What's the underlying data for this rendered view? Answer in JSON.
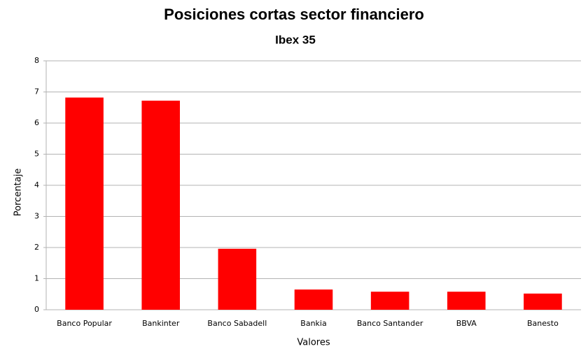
{
  "chart_data": {
    "type": "bar",
    "title": "Posiciones cortas sector financiero",
    "subtitle": "Ibex 35",
    "x_label": "Valores",
    "y_label": "Porcentaje",
    "categories": [
      "Banco Popular",
      "Bankinter",
      "Banco Sabadell",
      "Bankia",
      "Banco Santander",
      "BBVA",
      "Banesto"
    ],
    "values": [
      6.82,
      6.72,
      1.96,
      0.65,
      0.58,
      0.58,
      0.52
    ],
    "color": "#ff0000",
    "ylim": [
      0,
      8
    ],
    "yticks": [
      0,
      1,
      2,
      3,
      4,
      5,
      6,
      7,
      8
    ],
    "grid": true
  }
}
